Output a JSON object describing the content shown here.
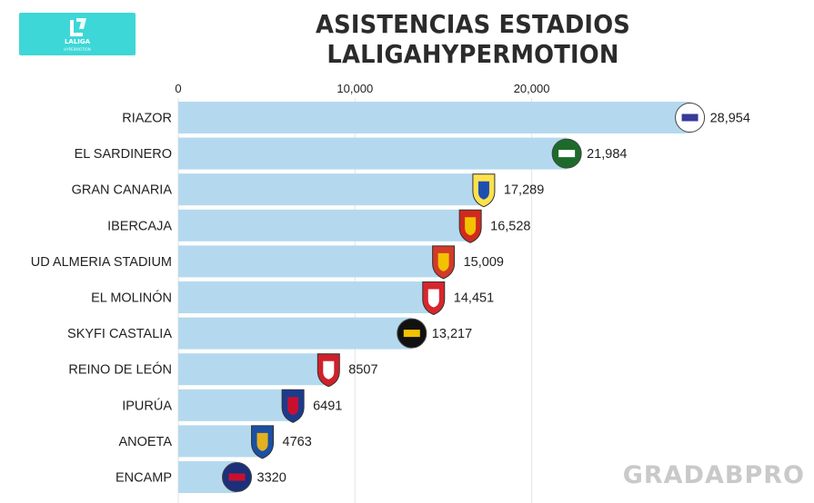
{
  "header": {
    "title": "ASISTENCIAS ESTADIOS LALIGAHYPERMOTION",
    "logo_text": "LALIGA",
    "logo_subtext": "HYPERMOTION"
  },
  "watermark": "GRADABPRO",
  "colors": {
    "bar": "#b4d9ee",
    "grid": "#e3e3e3",
    "logo_bg": "#3ed7d7",
    "text": "#222222"
  },
  "chart_data": {
    "type": "bar",
    "orientation": "horizontal",
    "title": "ASISTENCIAS ESTADIOS LALIGAHYPERMOTION",
    "xlim": [
      0,
      31000
    ],
    "x_ticks": [
      0,
      10000,
      20000
    ],
    "x_tick_labels": [
      "0",
      "10,000",
      "20,000"
    ],
    "grid": "vertical",
    "categories": [
      "RIAZOR",
      "EL SARDINERO",
      "GRAN CANARIA",
      "IBERCAJA",
      "UD ALMERIA STADIUM",
      "EL MOLINÓN",
      "SKYFI CASTALIA",
      "REINO DE LEÓN",
      "IPURÚA",
      "ANOETA",
      "ENCAMP"
    ],
    "values": [
      28954,
      21984,
      17289,
      16528,
      15009,
      14451,
      13217,
      8507,
      6491,
      4763,
      3320
    ],
    "value_labels": [
      "28,954",
      "21,984",
      "17,289",
      "16,528",
      "15,009",
      "14,451",
      "13,217",
      "8507",
      "6491",
      "4763",
      "3320"
    ],
    "crest_icons": [
      "deportivo-crest-icon",
      "racing-crest-icon",
      "las-palmas-crest-icon",
      "zaragoza-crest-icon",
      "almeria-crest-icon",
      "sporting-crest-icon",
      "castellon-crest-icon",
      "leonesa-crest-icon",
      "eibar-crest-icon",
      "real-sociedad-crest-icon",
      "andorra-crest-icon"
    ],
    "crest_colors": [
      [
        "#ffffff",
        "#3a3a9a"
      ],
      [
        "#1d6b2a",
        "#ffffff"
      ],
      [
        "#ffe14d",
        "#1e4fb0"
      ],
      [
        "#d02a1e",
        "#f2c200"
      ],
      [
        "#d23a2a",
        "#f2c200"
      ],
      [
        "#d7262c",
        "#ffffff"
      ],
      [
        "#111111",
        "#f2c200"
      ],
      [
        "#d0202a",
        "#ffffff"
      ],
      [
        "#1a3c8f",
        "#c8102e"
      ],
      [
        "#1b4fa3",
        "#e3b11e"
      ],
      [
        "#1b2f7a",
        "#c8102e"
      ]
    ]
  }
}
